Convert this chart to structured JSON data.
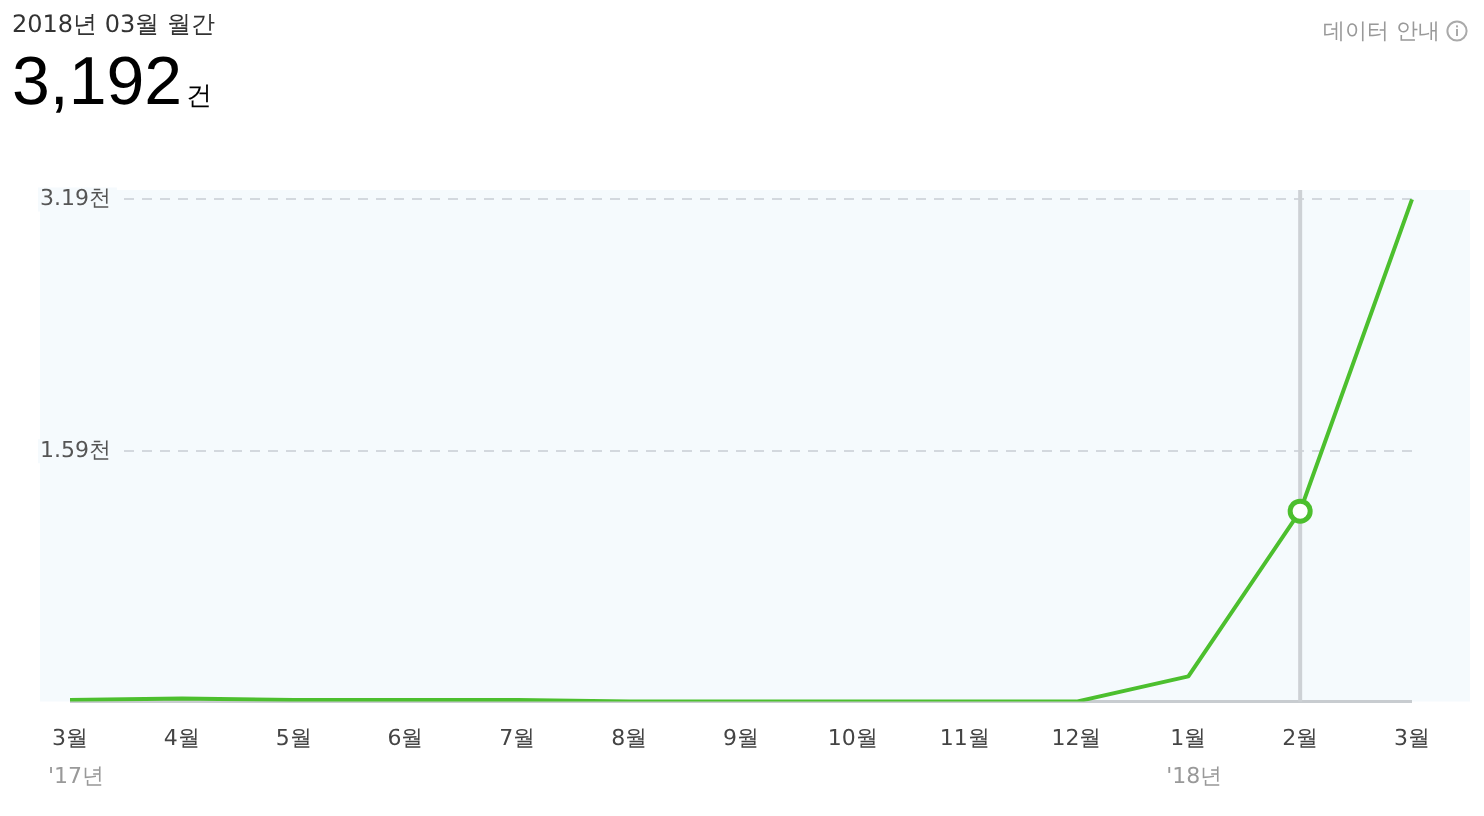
{
  "chart_data": {
    "type": "line",
    "title": "2018년 03월 월간",
    "subtitle": "3,192건",
    "categories": [
      "3월",
      "4월",
      "5월",
      "6월",
      "7월",
      "8월",
      "9월",
      "10월",
      "11월",
      "12월",
      "1월",
      "2월",
      "3월"
    ],
    "series": [
      {
        "color": "#4cbf2e",
        "values": [
          0.01,
          0.02,
          0.01,
          0.01,
          0.01,
          0,
          0,
          0,
          0,
          0,
          0.16,
          1.21,
          3.19
        ]
      },
      {
        "type": "scatter",
        "color": "#4cbf2e",
        "x": [
          "2월"
        ],
        "values": [
          1.21
        ]
      }
    ],
    "ylim": [
      0,
      3.25
    ],
    "yticks": [
      {
        "value": 0,
        "label": null
      },
      {
        "value": 1.59,
        "label": "1.59천"
      },
      {
        "value": 3.19,
        "label": "3.19천"
      }
    ],
    "grid": "y",
    "legend": false,
    "ref_lines": [
      {
        "axis": "x",
        "value": "2월",
        "color": "#cdd1d5"
      }
    ],
    "annotations": [
      "데이터 안내",
      "'17년",
      "'18년"
    ]
  }
}
